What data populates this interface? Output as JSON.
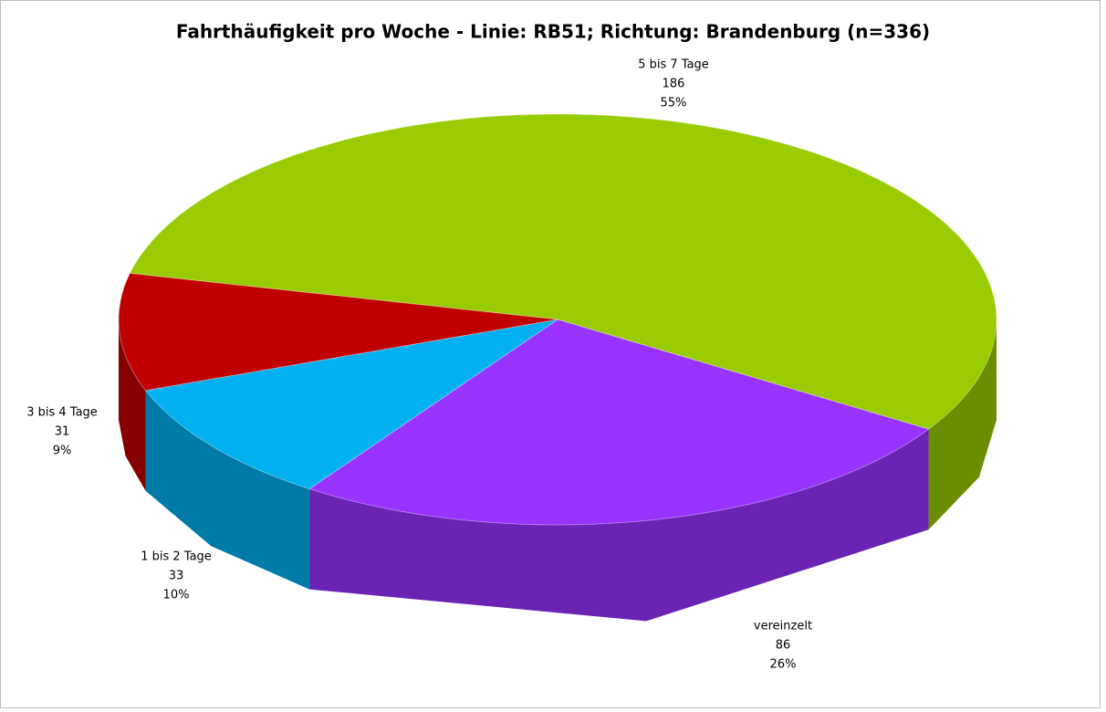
{
  "chart_data": {
    "type": "pie3d",
    "title": "Fahrthäufigkeit pro Woche - Linie: RB51; Richtung: Brandenburg (n=336)",
    "categories": [
      "5 bis 7 Tage",
      "vereinzelt",
      "1 bis 2 Tage",
      "3 bis 4 Tage"
    ],
    "values": [
      186,
      86,
      33,
      31
    ],
    "percentages": [
      55,
      26,
      10,
      9
    ],
    "percent_labels": [
      "55%",
      "26%",
      "10%",
      "9%"
    ],
    "colors": [
      "#99cc00",
      "#9933ff",
      "#00b0f0",
      "#c00000"
    ]
  }
}
